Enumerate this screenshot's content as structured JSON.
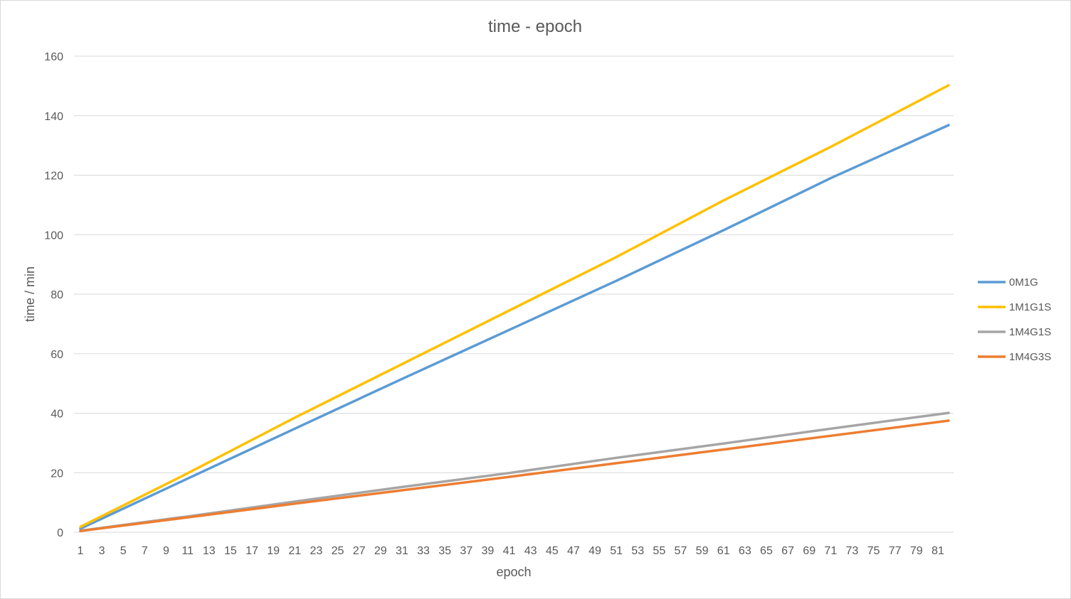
{
  "chart_data": {
    "type": "line",
    "title": "time - epoch",
    "xlabel": "epoch",
    "ylabel": "time / min",
    "ylim": [
      0,
      160
    ],
    "yticks": [
      0,
      20,
      40,
      60,
      80,
      100,
      120,
      140,
      160
    ],
    "xlim": [
      1,
      82
    ],
    "xticks": [
      1,
      3,
      5,
      7,
      9,
      11,
      13,
      15,
      17,
      19,
      21,
      23,
      25,
      27,
      29,
      31,
      33,
      35,
      37,
      39,
      41,
      43,
      45,
      47,
      49,
      51,
      53,
      55,
      57,
      59,
      61,
      63,
      65,
      67,
      69,
      71,
      73,
      75,
      77,
      79,
      81
    ],
    "grid": "horizontal",
    "legend_position": "right",
    "series": [
      {
        "name": "0M1G",
        "color": "#5b9bd5",
        "x": [
          1,
          11,
          21,
          31,
          41,
          51,
          61,
          71,
          82
        ],
        "values": [
          1.2,
          18.0,
          34.8,
          51.5,
          68.0,
          84.5,
          101.5,
          119.0,
          136.8
        ]
      },
      {
        "name": "1M1G1S",
        "color": "#ffc000",
        "x": [
          1,
          11,
          21,
          31,
          41,
          51,
          61,
          71,
          82
        ],
        "values": [
          1.8,
          19.8,
          38.5,
          56.5,
          74.5,
          92.5,
          111.5,
          129.5,
          150.2
        ]
      },
      {
        "name": "1M4G1S",
        "color": "#a5a5a5",
        "x": [
          1,
          11,
          21,
          31,
          41,
          51,
          61,
          71,
          82
        ],
        "values": [
          0.5,
          5.3,
          10.3,
          15.2,
          19.9,
          25.0,
          29.8,
          34.8,
          40.1
        ]
      },
      {
        "name": "1M4G3S",
        "color": "#ed7d31",
        "x": [
          1,
          11,
          21,
          31,
          41,
          51,
          61,
          71,
          82
        ],
        "values": [
          0.4,
          5.0,
          9.6,
          14.1,
          18.6,
          23.2,
          27.8,
          32.4,
          37.5
        ]
      }
    ]
  },
  "style": {
    "grid_color": "#d9d9d9",
    "text_color": "#595959"
  }
}
